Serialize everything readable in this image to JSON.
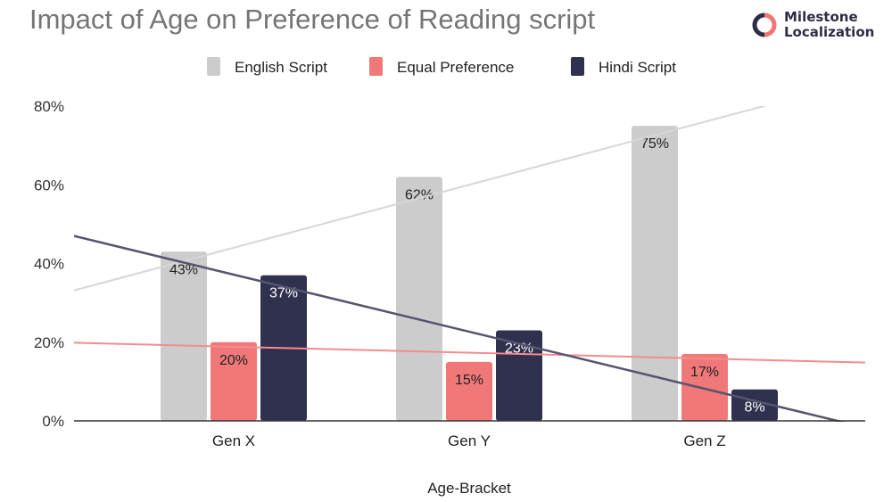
{
  "logo": {
    "line1": "Milestone",
    "line2": "Localization",
    "colors": [
      "#2d2d45",
      "#f07575"
    ]
  },
  "chart_data": {
    "type": "bar",
    "title": "Impact of Age on Preference of Reading script",
    "xlabel": "Age-Bracket",
    "ylabel": "",
    "categories": [
      "Gen X",
      "Gen Y",
      "Gen Z"
    ],
    "ylim": [
      0,
      80
    ],
    "yticks": [
      "0%",
      "20%",
      "40%",
      "60%",
      "80%"
    ],
    "ytick_values": [
      0,
      20,
      40,
      60,
      80
    ],
    "grid": false,
    "legend": "top",
    "trendlines": "linear, one per series",
    "series": [
      {
        "name": "English Script",
        "values": [
          43,
          62,
          75
        ],
        "labels": [
          "43%",
          "62%",
          "75%"
        ],
        "color": "#cccccc",
        "label_color": "#222222"
      },
      {
        "name": "Equal Preference",
        "values": [
          20,
          15,
          17
        ],
        "labels": [
          "20%",
          "15%",
          "17%"
        ],
        "color": "#f07878",
        "label_color": "#222222"
      },
      {
        "name": "Hindi Script",
        "values": [
          37,
          23,
          8
        ],
        "labels": [
          "37%",
          "23%",
          "8%"
        ],
        "color": "#30304f",
        "label_color": "#ffffff"
      }
    ],
    "trendline_colors": [
      "#d6d6d6",
      "#f38c8c",
      "#55556e"
    ]
  }
}
